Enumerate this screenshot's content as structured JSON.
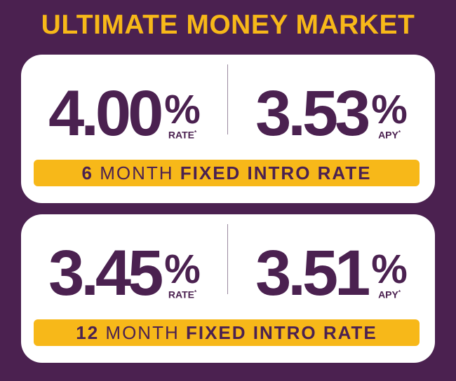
{
  "header": {
    "title": "ULTIMATE MONEY MARKET"
  },
  "cards": [
    {
      "rate": {
        "value": "4.00",
        "symbol": "%",
        "label": "RATE",
        "note": "*"
      },
      "apy": {
        "value": "3.53",
        "symbol": "%",
        "label": "APY",
        "note": "*"
      },
      "banner": {
        "term": "6",
        "unit": "MONTH",
        "text": "FIXED INTRO RATE"
      }
    },
    {
      "rate": {
        "value": "3.45",
        "symbol": "%",
        "label": "RATE",
        "note": "*"
      },
      "apy": {
        "value": "3.51",
        "symbol": "%",
        "label": "APY",
        "note": "*"
      },
      "banner": {
        "term": "12",
        "unit": "MONTH",
        "text": "FIXED INTRO RATE"
      }
    }
  ]
}
